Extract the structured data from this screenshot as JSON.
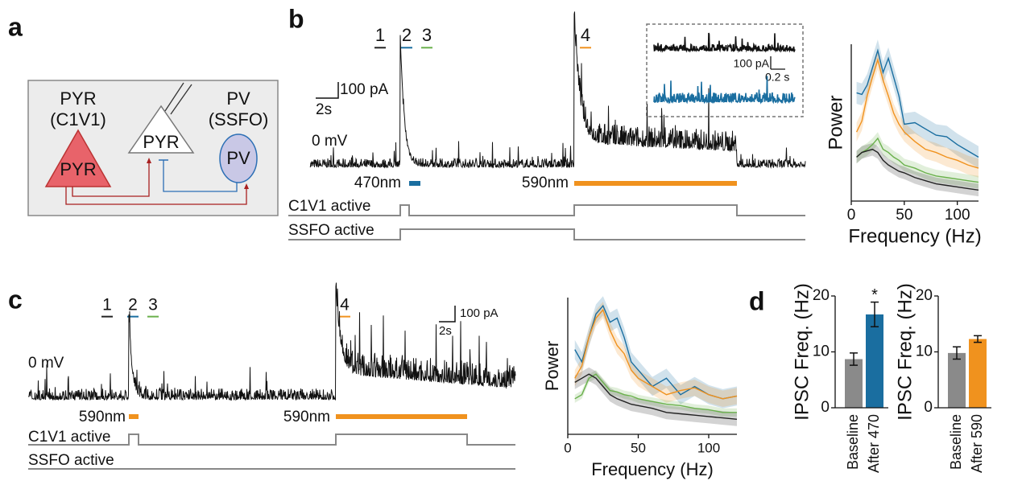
{
  "panels": {
    "a": {
      "label": "a",
      "nodes": [
        {
          "label": "PYR",
          "sublabel": "(C1V1)",
          "inner": "PYR"
        },
        {
          "inner": "PYR"
        },
        {
          "label": "PV",
          "sublabel": "(SSFO)",
          "inner": "PV"
        }
      ]
    },
    "b": {
      "label": "b",
      "markers": [
        "1",
        "2",
        "3",
        "4"
      ],
      "scale_current": "100 pA",
      "scale_time": "2s",
      "holding": "0 mV",
      "stim": [
        "470nm",
        "590nm"
      ],
      "states": [
        "C1V1 active",
        "SSFO active"
      ],
      "inset": {
        "scale_current": "100 pA",
        "scale_time": "0.2 s"
      }
    },
    "c": {
      "label": "c",
      "markers": [
        "1",
        "2",
        "3",
        "4"
      ],
      "scale_current": "100 pA",
      "scale_time": "2s",
      "holding": "0 mV",
      "stim": [
        "590nm",
        "590nm"
      ],
      "states": [
        "C1V1 active",
        "SSFO active"
      ]
    },
    "d": {
      "label": "d"
    }
  },
  "chart_data": [
    {
      "type": "line",
      "ylabel": "Power",
      "xlabel": "Frequency (Hz)",
      "x": [
        5,
        10,
        15,
        20,
        25,
        30,
        35,
        40,
        45,
        50,
        60,
        70,
        80,
        90,
        100,
        110,
        120
      ],
      "xlim": [
        0,
        120
      ],
      "xticks": [
        0,
        50,
        100
      ],
      "ylim": [
        0,
        1
      ],
      "series": [
        {
          "color": "#1a6ea0",
          "band": 0.07,
          "values": [
            0.69,
            0.68,
            0.74,
            0.85,
            0.96,
            0.82,
            0.91,
            0.79,
            0.67,
            0.49,
            0.5,
            0.46,
            0.42,
            0.41,
            0.36,
            0.32,
            0.28
          ]
        },
        {
          "color": "#f0921e",
          "band": 0.06,
          "values": [
            0.44,
            0.51,
            0.67,
            0.79,
            0.9,
            0.77,
            0.67,
            0.56,
            0.49,
            0.44,
            0.38,
            0.33,
            0.31,
            0.28,
            0.26,
            0.23,
            0.21
          ]
        },
        {
          "color": "#6ab04c",
          "band": 0.04,
          "values": [
            0.28,
            0.31,
            0.33,
            0.36,
            0.4,
            0.33,
            0.31,
            0.28,
            0.26,
            0.23,
            0.21,
            0.18,
            0.16,
            0.15,
            0.14,
            0.13,
            0.12
          ]
        },
        {
          "color": "#222222",
          "band": 0.04,
          "values": [
            0.28,
            0.31,
            0.32,
            0.33,
            0.31,
            0.26,
            0.23,
            0.21,
            0.19,
            0.18,
            0.15,
            0.13,
            0.11,
            0.1,
            0.09,
            0.08,
            0.07
          ]
        }
      ]
    },
    {
      "type": "line",
      "ylabel": "Power",
      "xlabel": "Frequency (Hz)",
      "x": [
        5,
        10,
        15,
        20,
        25,
        30,
        35,
        40,
        45,
        50,
        60,
        70,
        80,
        90,
        100,
        110,
        120
      ],
      "xlim": [
        0,
        120
      ],
      "xticks": [
        0,
        50,
        100
      ],
      "ylim": [
        0,
        1
      ],
      "series": [
        {
          "color": "#1a6ea0",
          "band": 0.07,
          "values": [
            0.62,
            0.53,
            0.71,
            0.88,
            0.94,
            0.82,
            0.85,
            0.71,
            0.53,
            0.47,
            0.35,
            0.41,
            0.29,
            0.35,
            0.29,
            0.26,
            0.28
          ]
        },
        {
          "color": "#f0921e",
          "band": 0.06,
          "values": [
            0.41,
            0.5,
            0.71,
            0.85,
            0.91,
            0.76,
            0.65,
            0.59,
            0.47,
            0.41,
            0.35,
            0.29,
            0.32,
            0.34,
            0.29,
            0.26,
            0.28
          ]
        },
        {
          "color": "#6ab04c",
          "band": 0.03,
          "values": [
            0.26,
            0.29,
            0.41,
            0.44,
            0.38,
            0.32,
            0.31,
            0.29,
            0.28,
            0.26,
            0.24,
            0.22,
            0.21,
            0.19,
            0.18,
            0.16,
            0.16
          ]
        },
        {
          "color": "#222222",
          "band": 0.05,
          "values": [
            0.38,
            0.41,
            0.44,
            0.41,
            0.35,
            0.29,
            0.26,
            0.24,
            0.22,
            0.21,
            0.19,
            0.16,
            0.15,
            0.14,
            0.13,
            0.12,
            0.11
          ]
        }
      ]
    },
    {
      "type": "bar",
      "ylabel": "IPSC Freq. (Hz)",
      "categories": [
        "Baseline",
        "After 470"
      ],
      "values": [
        8.7,
        16.7
      ],
      "errors": [
        1.1,
        2.2
      ],
      "colors": [
        "#8a8a8a",
        "#1a6ea0"
      ],
      "ylim": [
        0,
        20
      ],
      "yticks": [
        0,
        10,
        20
      ],
      "annotation": "*"
    },
    {
      "type": "bar",
      "ylabel": "IPSC Freq. (Hz)",
      "categories": [
        "Baseline",
        "After 590"
      ],
      "values": [
        9.8,
        12.3
      ],
      "errors": [
        1.1,
        0.6
      ],
      "colors": [
        "#8a8a8a",
        "#f0921e"
      ],
      "ylim": [
        0,
        20
      ],
      "yticks": [
        0,
        10,
        20
      ]
    }
  ]
}
